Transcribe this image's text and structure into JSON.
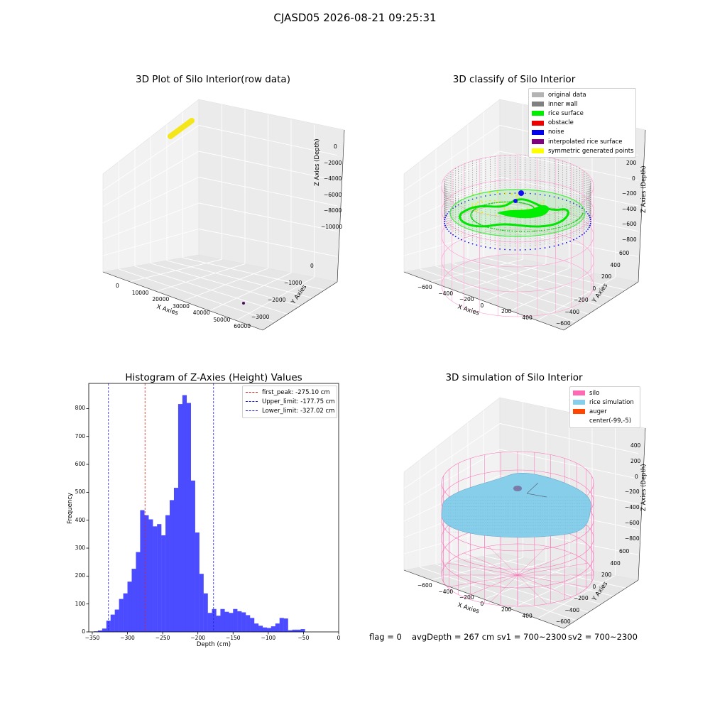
{
  "suptitle": "CJASD05 2026-08-21 09:25:31",
  "chart_data": [
    {
      "type": "scatter",
      "title": "3D Plot of Silo Interior(row data)",
      "xlabel": "X Axies",
      "ylabel": "Y Axies",
      "zlabel": "Z Axies (Depth)",
      "x_ticks": [
        "0",
        "10000",
        "20000",
        "30000",
        "40000",
        "50000",
        "60000"
      ],
      "y_ticks": [
        "0",
        "−1000",
        "−2000",
        "−3000"
      ],
      "z_ticks": [
        "0",
        "−2000",
        "−4000",
        "−6000",
        "−8000",
        "−10000"
      ],
      "series_colors": [
        "#f5e61c",
        "#4b0f5c"
      ]
    },
    {
      "type": "scatter",
      "title": "3D classify of Silo Interior",
      "xlabel": "X Axies",
      "ylabel": "Y Axies",
      "zlabel": "Z Axies (Depth)",
      "x_ticks": [
        "−600",
        "−400",
        "−200",
        "0",
        "200",
        "400"
      ],
      "y_ticks": [
        "600",
        "400",
        "200",
        "0",
        "−200",
        "−400",
        "−600"
      ],
      "z_ticks": [
        "200",
        "0",
        "−200",
        "−400",
        "−600",
        "−800"
      ],
      "legend": [
        {
          "label": "original data",
          "color": "#b3b3b3"
        },
        {
          "label": "inner wall",
          "color": "#808080"
        },
        {
          "label": "rice surface",
          "color": "#00ee00"
        },
        {
          "label": "obstacle",
          "color": "#ee0000"
        },
        {
          "label": "noise",
          "color": "#0000ee"
        },
        {
          "label": "interpolated rice surface",
          "color": "#800080"
        },
        {
          "label": "symmetric generated points",
          "color": "#ffff00"
        }
      ]
    },
    {
      "type": "bar",
      "title": "Histogram of Z-Axies (Height) Values",
      "xlabel": "Depth (cm)",
      "ylabel": "Frequency",
      "xlim": [
        -355,
        0
      ],
      "ylim": [
        0,
        890
      ],
      "x_ticks": [
        -350,
        -300,
        -250,
        -200,
        -150,
        -100,
        -50,
        0
      ],
      "y_ticks": [
        0,
        100,
        200,
        300,
        400,
        500,
        600,
        700,
        800
      ],
      "bin_start": -348,
      "bin_width": 6,
      "values": [
        2,
        5,
        12,
        40,
        62,
        80,
        118,
        138,
        180,
        226,
        286,
        436,
        418,
        403,
        378,
        386,
        346,
        418,
        472,
        516,
        816,
        848,
        820,
        542,
        356,
        208,
        138,
        68,
        82,
        58,
        82,
        72,
        68,
        82,
        74,
        70,
        60,
        50,
        30,
        22,
        16,
        14,
        20,
        30,
        50,
        48,
        6,
        8,
        8,
        10
      ],
      "bar_color": "#4b4bff",
      "lines": [
        {
          "label": "first_peak: -275.10 cm",
          "x": -275.1,
          "color": "#dd2222"
        },
        {
          "label": "Upper_limit: -177.75 cm",
          "x": -177.75,
          "color": "#2222dd"
        },
        {
          "label": "Lower_limit: -327.02 cm",
          "x": -327.02,
          "color": "#2222dd"
        }
      ]
    },
    {
      "type": "area",
      "title": "3D simulation of Silo Interior",
      "xlabel": "X Axies",
      "ylabel": "Y Axies",
      "zlabel": "Z Axies (Depth)",
      "x_ticks": [
        "−600",
        "−400",
        "−200",
        "0",
        "200",
        "400"
      ],
      "y_ticks": [
        "600",
        "400",
        "200",
        "0",
        "−200",
        "−400",
        "−600"
      ],
      "z_ticks": [
        "400",
        "200",
        "0",
        "−200",
        "−400",
        "−600",
        "−800"
      ],
      "legend": [
        {
          "label": "silo",
          "color": "#ff69b4"
        },
        {
          "label": "rice simulation",
          "color": "#87ceeb"
        },
        {
          "label": "auger",
          "color": "#ff4500"
        },
        {
          "label": "center(-99,-5)",
          "color": ""
        }
      ]
    }
  ],
  "status": {
    "flag": "flag = 0",
    "avg_depth": "avgDepth = 267 cm",
    "sv1": "sv1 = 700~2300",
    "sv2": "sv2 = 700~2300"
  }
}
